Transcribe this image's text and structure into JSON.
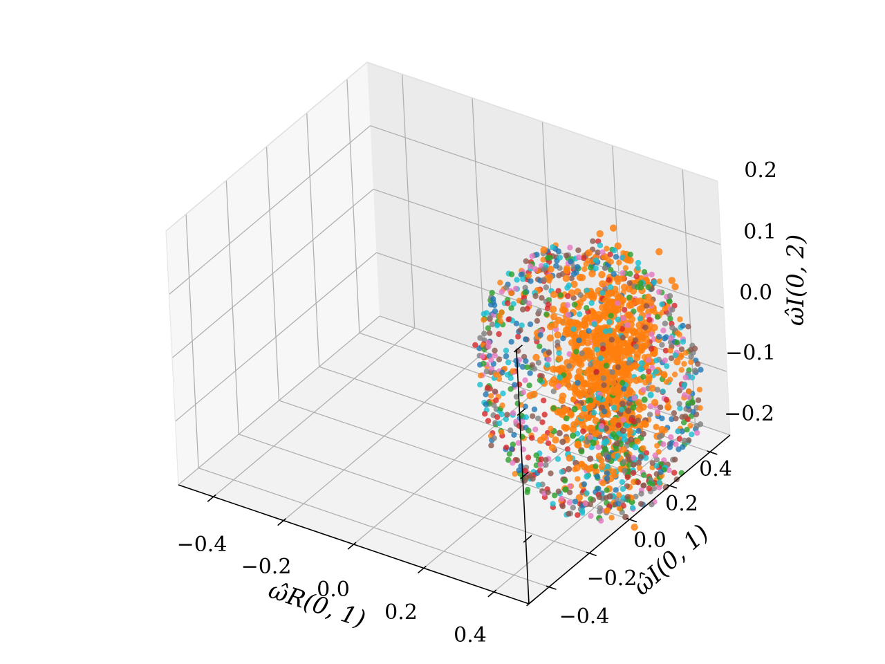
{
  "chart_data": {
    "type": "scatter",
    "projection": "3d",
    "title": "",
    "xlabel": "ω̂R(0, 1)",
    "ylabel": "ω̂I(0, 1)",
    "zlabel": "ω̂I(0, 2)",
    "xlim": [
      -0.5,
      0.5
    ],
    "ylim": [
      -0.5,
      0.5
    ],
    "zlim": [
      -0.2,
      0.2
    ],
    "x_ticks": [
      "−0.4",
      "−0.2",
      "0.0",
      "0.2",
      "0.4"
    ],
    "y_ticks": [
      "−0.4",
      "−0.2",
      "0.0",
      "0.2",
      "0.4"
    ],
    "z_ticks": [
      "−0.2",
      "−0.1",
      "0.0",
      "0.1",
      "0.2"
    ],
    "grid": true,
    "legend": "none",
    "series": [
      {
        "color": "#1f77b4"
      },
      {
        "color": "#2ca02c"
      },
      {
        "color": "#d62728"
      },
      {
        "color": "#8c564b"
      },
      {
        "color": "#e377c2"
      },
      {
        "color": "#7f7f7f"
      },
      {
        "color": "#17becf"
      },
      {
        "color": "#ff7f0e"
      }
    ],
    "cloud": {
      "description_values": "point cloud approximately spherical",
      "center": [
        0.4,
        0.0,
        0.0
      ],
      "radius_xy": 0.28,
      "radius_z": 0.2,
      "dense_series_color": "#ff7f0e",
      "dense_core": [
        0.42,
        0.05,
        0.02
      ]
    }
  }
}
